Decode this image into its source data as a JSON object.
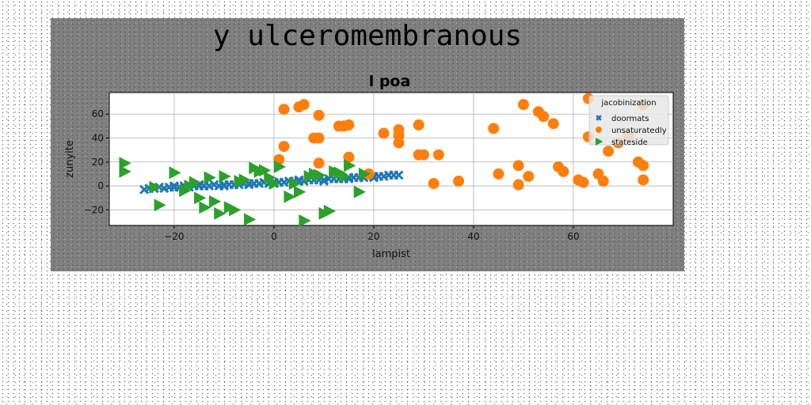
{
  "figure": {
    "suptitle": "y ulceromembranous"
  },
  "chart_data": {
    "type": "scatter",
    "title": "l poa",
    "xlabel": "lampist",
    "ylabel": "zunyite",
    "xlim": [
      -33,
      80
    ],
    "ylim": [
      -33,
      78
    ],
    "xticks": [
      -20,
      0,
      20,
      40,
      60
    ],
    "yticks": [
      -20,
      0,
      20,
      40,
      60
    ],
    "grid": true,
    "legend": {
      "title": "jacobinization",
      "placement": "upper right"
    },
    "series": [
      {
        "name": "doormats",
        "marker": "x",
        "color": "#1f77b4",
        "points": [
          [
            -26,
            -3
          ],
          [
            -25,
            -2
          ],
          [
            -24,
            -2
          ],
          [
            -23,
            -1
          ],
          [
            -22,
            -2
          ],
          [
            -21,
            -1
          ],
          [
            -20,
            -1
          ],
          [
            -19,
            -1
          ],
          [
            -18,
            0
          ],
          [
            -17,
            -1
          ],
          [
            -16,
            0
          ],
          [
            -15,
            0
          ],
          [
            -14,
            0
          ],
          [
            -13,
            0
          ],
          [
            -12,
            1
          ],
          [
            -11,
            0
          ],
          [
            -10,
            1
          ],
          [
            -9,
            1
          ],
          [
            -8,
            1
          ],
          [
            -7,
            1
          ],
          [
            -6,
            2
          ],
          [
            -5,
            2
          ],
          [
            -4,
            2
          ],
          [
            -3,
            2
          ],
          [
            -2,
            3
          ],
          [
            -1,
            2
          ],
          [
            0,
            3
          ],
          [
            1,
            3
          ],
          [
            2,
            3
          ],
          [
            3,
            4
          ],
          [
            4,
            4
          ],
          [
            5,
            4
          ],
          [
            6,
            4
          ],
          [
            7,
            5
          ],
          [
            8,
            5
          ],
          [
            9,
            5
          ],
          [
            10,
            5
          ],
          [
            11,
            6
          ],
          [
            12,
            6
          ],
          [
            13,
            6
          ],
          [
            14,
            6
          ],
          [
            15,
            7
          ],
          [
            16,
            7
          ],
          [
            17,
            7
          ],
          [
            18,
            7
          ],
          [
            19,
            8
          ],
          [
            20,
            8
          ],
          [
            21,
            8
          ],
          [
            22,
            8
          ],
          [
            23,
            9
          ],
          [
            24,
            9
          ],
          [
            25,
            9
          ],
          [
            -24,
            -2
          ],
          [
            -20,
            0
          ],
          [
            -15,
            1
          ],
          [
            -10,
            0
          ],
          [
            -5,
            1
          ],
          [
            0,
            2
          ],
          [
            5,
            5
          ],
          [
            10,
            4
          ],
          [
            15,
            6
          ],
          [
            20,
            7
          ]
        ]
      },
      {
        "name": "unsaturatedly",
        "marker": "o",
        "color": "#ff7f0e",
        "points": [
          [
            2,
            64
          ],
          [
            5,
            66
          ],
          [
            6,
            68
          ],
          [
            9,
            59
          ],
          [
            8,
            40
          ],
          [
            9,
            40
          ],
          [
            2,
            33
          ],
          [
            1,
            22
          ],
          [
            9,
            19
          ],
          [
            14,
            50
          ],
          [
            15,
            51
          ],
          [
            13,
            50
          ],
          [
            15,
            24
          ],
          [
            19,
            10
          ],
          [
            22,
            44
          ],
          [
            25,
            47
          ],
          [
            25,
            42
          ],
          [
            25,
            36
          ],
          [
            29,
            51
          ],
          [
            29,
            26
          ],
          [
            30,
            26
          ],
          [
            33,
            26
          ],
          [
            32,
            2
          ],
          [
            37,
            4
          ],
          [
            45,
            10
          ],
          [
            44,
            48
          ],
          [
            49,
            1
          ],
          [
            49,
            17
          ],
          [
            50,
            68
          ],
          [
            51,
            8
          ],
          [
            53,
            62
          ],
          [
            54,
            58
          ],
          [
            56,
            52
          ],
          [
            57,
            16
          ],
          [
            58,
            12
          ],
          [
            61,
            5
          ],
          [
            62,
            3
          ],
          [
            63,
            41
          ],
          [
            63,
            73
          ],
          [
            65,
            10
          ],
          [
            66,
            4
          ],
          [
            67,
            29
          ],
          [
            69,
            36
          ],
          [
            73,
            20
          ],
          [
            74,
            17
          ],
          [
            74,
            5
          ],
          [
            74,
            68
          ],
          [
            71,
            42
          ]
        ]
      },
      {
        "name": "stateside",
        "marker": "triangle-right",
        "color": "#2ca02c",
        "points": [
          [
            -30,
            19
          ],
          [
            -30,
            12
          ],
          [
            -24,
            -1
          ],
          [
            -23,
            -16
          ],
          [
            -20,
            11
          ],
          [
            -18,
            -4
          ],
          [
            -17,
            0
          ],
          [
            -16,
            3
          ],
          [
            -15,
            -10
          ],
          [
            -14,
            -18
          ],
          [
            -13,
            7
          ],
          [
            -12,
            -13
          ],
          [
            -11,
            -23
          ],
          [
            -10,
            8
          ],
          [
            -9,
            -18
          ],
          [
            -8,
            -20
          ],
          [
            -7,
            4
          ],
          [
            -6,
            5
          ],
          [
            -5,
            -28
          ],
          [
            -4,
            15
          ],
          [
            -3,
            12
          ],
          [
            -2,
            13
          ],
          [
            -1,
            7
          ],
          [
            0,
            2
          ],
          [
            1,
            16
          ],
          [
            3,
            -9
          ],
          [
            4,
            2
          ],
          [
            5,
            -5
          ],
          [
            6,
            -29
          ],
          [
            7,
            8
          ],
          [
            8,
            10
          ],
          [
            9,
            9
          ],
          [
            10,
            -23
          ],
          [
            11,
            -21
          ],
          [
            12,
            12
          ],
          [
            13,
            11
          ],
          [
            14,
            8
          ],
          [
            15,
            17
          ],
          [
            17,
            -5
          ],
          [
            18,
            10
          ]
        ]
      }
    ]
  }
}
